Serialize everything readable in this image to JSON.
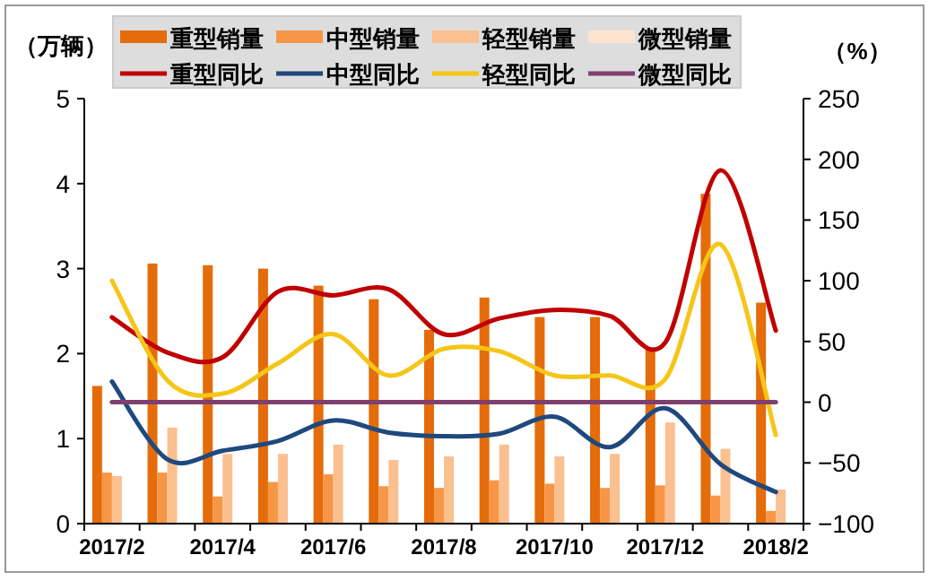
{
  "chart_data": {
    "type": "bar",
    "ylabel": "（万辆）",
    "y2label": "（%）",
    "categories": [
      "2017/2",
      null,
      "2017/4",
      null,
      "2017/6",
      null,
      "2017/8",
      null,
      "2017/10",
      null,
      "2017/12",
      null,
      "2018/2"
    ],
    "series": [
      {
        "name": "重型销量",
        "color": "#e46c0a",
        "values": [
          1.62,
          3.06,
          3.04,
          3.0,
          2.8,
          2.64,
          2.28,
          2.66,
          2.43,
          2.43,
          2.07,
          3.88,
          2.6
        ]
      },
      {
        "name": "中型销量",
        "color": "#f79646",
        "values": [
          0.6,
          0.6,
          0.32,
          0.49,
          0.58,
          0.44,
          0.42,
          0.51,
          0.47,
          0.42,
          0.45,
          0.33,
          0.15
        ]
      },
      {
        "name": "轻型销量",
        "color": "#fac090",
        "values": [
          0.56,
          1.13,
          0.82,
          0.82,
          0.93,
          0.75,
          0.79,
          0.93,
          0.79,
          0.82,
          1.19,
          0.88,
          0.4
        ]
      },
      {
        "name": "微型销量",
        "color": "#fde4d0",
        "values": [
          null,
          null,
          null,
          null,
          null,
          null,
          null,
          null,
          null,
          null,
          null,
          null,
          null
        ]
      },
      {
        "name": "重型同比",
        "type": "line",
        "axis": "y2",
        "color": "#c00000",
        "values": [
          70,
          41,
          37,
          91,
          88,
          93,
          56,
          69,
          76,
          71,
          49,
          191,
          59
        ]
      },
      {
        "name": "中型同比",
        "type": "line",
        "axis": "y2",
        "color": "#1f497d",
        "values": [
          17,
          -47,
          -40,
          -32,
          -15,
          -25,
          -28,
          -26,
          -12,
          -37,
          -5,
          -51,
          -74
        ]
      },
      {
        "name": "轻型同比",
        "type": "line",
        "axis": "y2",
        "color": "#f5c518",
        "values": [
          100,
          18,
          7,
          32,
          56,
          22,
          44,
          42,
          22,
          22,
          19,
          130,
          -27
        ]
      },
      {
        "name": "微型同比",
        "type": "line",
        "axis": "y2",
        "color": "#7f3f6f",
        "values": [
          0,
          0,
          0,
          0,
          0,
          0,
          0,
          0,
          0,
          0,
          0,
          0,
          0
        ]
      }
    ],
    "ylim": [
      0,
      5
    ],
    "yticks": [
      0,
      1,
      2,
      3,
      4,
      5
    ],
    "y2lim": [
      -100,
      250
    ],
    "y2ticks": [
      -100,
      -50,
      0,
      50,
      100,
      150,
      200,
      250
    ],
    "legend": "top",
    "marker": "none",
    "line_style": "solid",
    "grid": false
  }
}
